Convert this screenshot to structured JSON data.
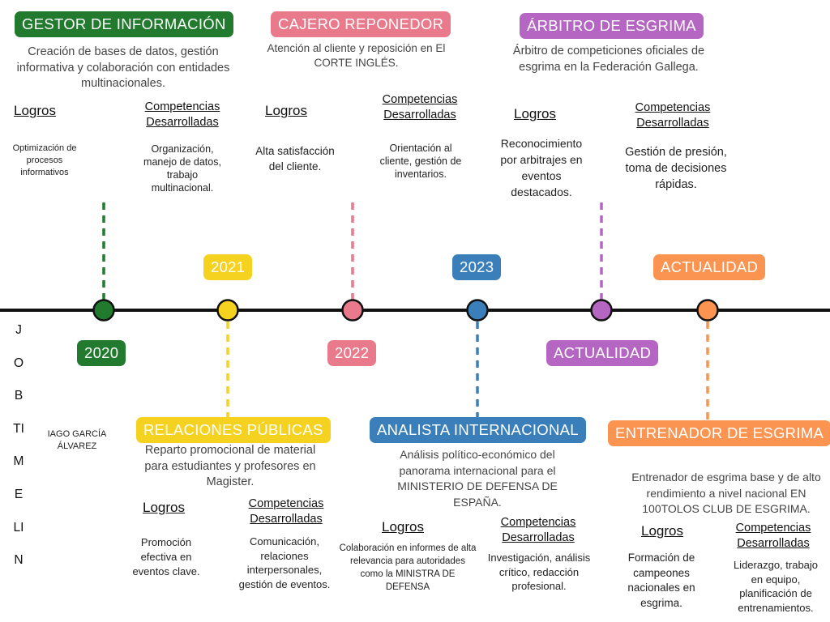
{
  "colors": {
    "green": "#217a2d",
    "yellow": "#f5d220",
    "pink": "#e97a8b",
    "blue": "#3a7fba",
    "purple": "#b566c2",
    "orange": "#fb9450",
    "line": "#111111"
  },
  "side_label": [
    "J",
    "O",
    "B",
    "TI",
    "M",
    "E",
    "LI",
    "N"
  ],
  "name": "IAGO GARCÍA ÁLVAREZ",
  "headings": {
    "logros": "Logros",
    "competencias": "Competencias Desarrolladas"
  },
  "years": {
    "y2020": "2020",
    "y2021": "2021",
    "y2022": "2022",
    "y2023": "2023",
    "actualidad_low": "ACTUALIDAD",
    "actualidad_high": "ACTUALIDAD"
  },
  "jobs": {
    "gestor": {
      "title": "GESTOR DE INFORMACIÓN",
      "description": "Creación de bases de datos, gestión informativa y colaboración con entidades multinacionales.",
      "logros": "Optimización de procesos informativos",
      "competencias": "Organización, manejo de datos, trabajo multinacional."
    },
    "cajero": {
      "title": "CAJERO REPONEDOR",
      "description": "Atención al cliente y reposición en El CORTE INGLÉS.",
      "logros": "Alta satisfacción del cliente.",
      "competencias": "Orientación al cliente, gestión de inventarios."
    },
    "arbitro": {
      "title": "ÁRBITRO DE ESGRIMA",
      "description": "Árbitro de competiciones oficiales de esgrima en la Federación Gallega.",
      "logros": "Reconocimiento por arbitrajes en eventos destacados.",
      "competencias": "Gestión de presión, toma de decisiones rápidas."
    },
    "relaciones": {
      "title": "RELACIONES PÚBLICAS",
      "description": "Reparto promocional de material para estudiantes y profesores en Magister.",
      "logros": "Promoción efectiva en eventos clave.",
      "competencias": "Comunicación, relaciones interpersonales, gestión de eventos."
    },
    "analista": {
      "title": "ANALISTA INTERNACIONAL",
      "description": "Análisis político-económico del panorama internacional para el MINISTERIO DE DEFENSA DE ESPAÑA.",
      "logros": "Colaboración en informes de alta relevancia para autoridades como la MINISTRA DE DEFENSA",
      "competencias": "Investigación, análisis crítico, redacción profesional."
    },
    "entrenador": {
      "title": "ENTRENADOR DE ESGRIMA",
      "description": "Entrenador de esgrima base y de alto rendimiento a nivel nacional EN 100TOLOS CLUB DE ESGRIMA.",
      "logros": "Formación de campeones nacionales en esgrima.",
      "competencias": "Liderazgo, trabajo en equipo, planificación de entrenamientos."
    }
  }
}
